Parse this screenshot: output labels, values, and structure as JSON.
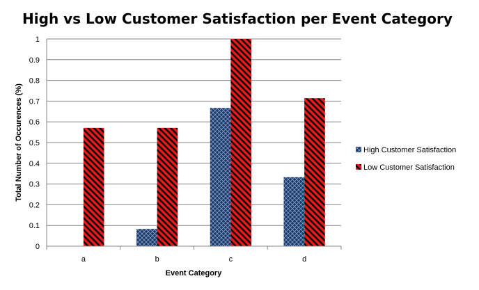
{
  "chart_data": {
    "type": "bar",
    "title": "High vs Low Customer Satisfaction per Event Category",
    "xlabel": "Event Category",
    "ylabel": "Total Number of Occurences (%)",
    "categories": [
      "a",
      "b",
      "c",
      "d"
    ],
    "ylim": [
      0,
      1
    ],
    "yticks": [
      "0",
      "0.1",
      "0.2",
      "0.3",
      "0.4",
      "0.5",
      "0.6",
      "0.7",
      "0.8",
      "0.9",
      "1"
    ],
    "grid": true,
    "legend_position": "right",
    "series": [
      {
        "name": "High Customer Satisfaction",
        "values": [
          0,
          0.083,
          0.667,
          0.333
        ],
        "color": "#1F3864",
        "pattern": "crosshatch"
      },
      {
        "name": "Low Customer Satisfaction",
        "values": [
          0.571,
          0.571,
          1.0,
          0.714
        ],
        "color": "#E31B1B",
        "pattern": "diagonal-stripes"
      }
    ]
  }
}
